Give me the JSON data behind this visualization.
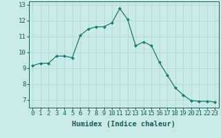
{
  "x": [
    0,
    1,
    2,
    3,
    4,
    5,
    6,
    7,
    8,
    9,
    10,
    11,
    12,
    13,
    14,
    15,
    16,
    17,
    18,
    19,
    20,
    21,
    22,
    23
  ],
  "y": [
    9.15,
    9.3,
    9.3,
    9.75,
    9.75,
    9.65,
    11.05,
    11.45,
    11.6,
    11.6,
    11.85,
    12.75,
    12.05,
    10.4,
    10.65,
    10.4,
    9.35,
    8.55,
    7.75,
    7.3,
    6.95,
    6.9,
    6.9,
    6.85
  ],
  "line_color": "#1a7a6e",
  "marker": "D",
  "marker_size": 2.0,
  "bg_color": "#c8eae8",
  "grid_color": "#aed4d0",
  "xlabel": "Humidex (Indice chaleur)",
  "xlim": [
    -0.5,
    23.5
  ],
  "ylim": [
    6.5,
    13.2
  ],
  "yticks": [
    7,
    8,
    9,
    10,
    11,
    12,
    13
  ],
  "xticks": [
    0,
    1,
    2,
    3,
    4,
    5,
    6,
    7,
    8,
    9,
    10,
    11,
    12,
    13,
    14,
    15,
    16,
    17,
    18,
    19,
    20,
    21,
    22,
    23
  ],
  "tick_color": "#1a5c56",
  "spine_color": "#1a5c56",
  "xlabel_fontsize": 7.5,
  "tick_fontsize": 6.5
}
